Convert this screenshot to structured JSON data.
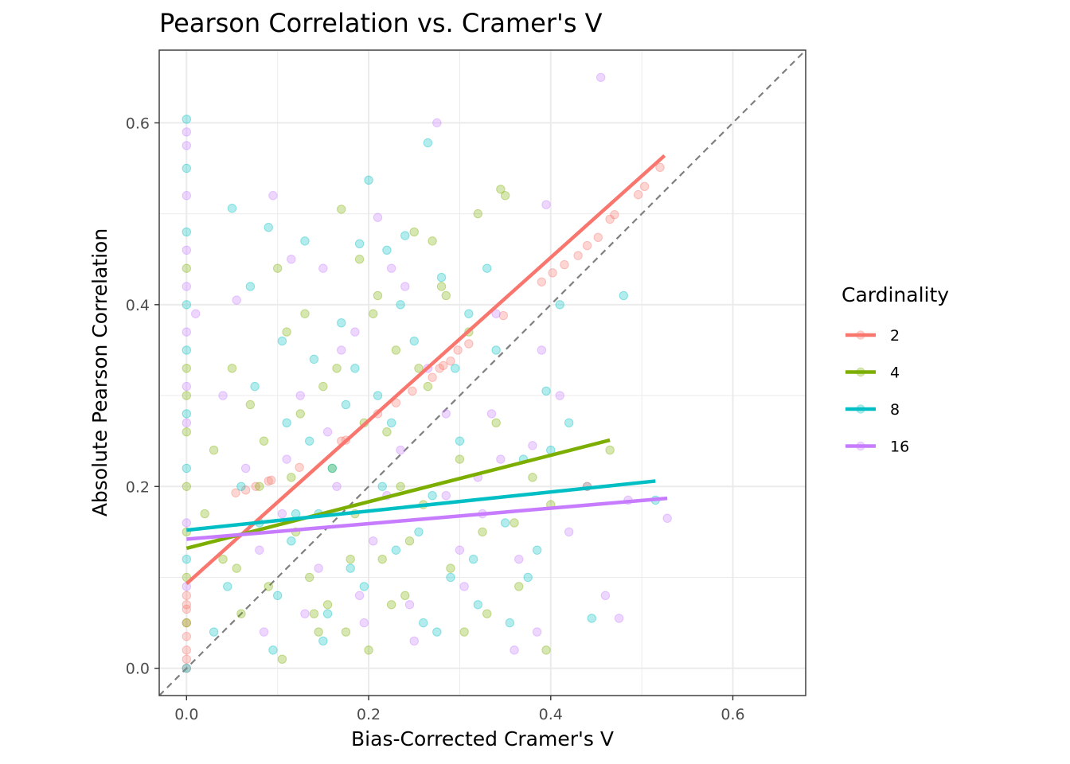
{
  "chart_data": {
    "type": "scatter",
    "title": "Pearson Correlation vs. Cramer's V",
    "xlabel": "Bias-Corrected Cramer's V",
    "ylabel": "Absolute Pearson Correlation",
    "xlim": [
      -0.03,
      0.68
    ],
    "ylim": [
      -0.03,
      0.68
    ],
    "x_ticks": [
      0.0,
      0.2,
      0.4,
      0.6
    ],
    "y_ticks": [
      0.0,
      0.2,
      0.4,
      0.6
    ],
    "x_tick_labels": [
      "0.0",
      "0.2",
      "0.4",
      "0.6"
    ],
    "y_tick_labels": [
      "0.0",
      "0.2",
      "0.4",
      "0.6"
    ],
    "grid": true,
    "reference_line": {
      "type": "identity",
      "style": "dashed",
      "color": "#7f7f7f"
    },
    "legend": {
      "title": "Cardinality",
      "position": "right"
    },
    "point_alpha": 0.3,
    "series": [
      {
        "name": "2",
        "color": "#F8766D",
        "fit": {
          "x": [
            0.0,
            0.525
          ],
          "y": [
            0.093,
            0.564
          ]
        },
        "points": [
          [
            0.0,
            0.0
          ],
          [
            0.0,
            0.01
          ],
          [
            0.0,
            0.02
          ],
          [
            0.0,
            0.035
          ],
          [
            0.0,
            0.05
          ],
          [
            0.0,
            0.065
          ],
          [
            0.0,
            0.07
          ],
          [
            0.0,
            0.08
          ],
          [
            0.054,
            0.193
          ],
          [
            0.065,
            0.196
          ],
          [
            0.076,
            0.2
          ],
          [
            0.09,
            0.206
          ],
          [
            0.093,
            0.207
          ],
          [
            0.124,
            0.221
          ],
          [
            0.17,
            0.25
          ],
          [
            0.175,
            0.251
          ],
          [
            0.21,
            0.28
          ],
          [
            0.23,
            0.292
          ],
          [
            0.248,
            0.305
          ],
          [
            0.27,
            0.32
          ],
          [
            0.278,
            0.33
          ],
          [
            0.282,
            0.333
          ],
          [
            0.29,
            0.338
          ],
          [
            0.298,
            0.35
          ],
          [
            0.31,
            0.357
          ],
          [
            0.348,
            0.388
          ],
          [
            0.39,
            0.425
          ],
          [
            0.402,
            0.435
          ],
          [
            0.415,
            0.444
          ],
          [
            0.43,
            0.454
          ],
          [
            0.44,
            0.465
          ],
          [
            0.452,
            0.474
          ],
          [
            0.465,
            0.494
          ],
          [
            0.47,
            0.499
          ],
          [
            0.496,
            0.521
          ],
          [
            0.503,
            0.53
          ],
          [
            0.52,
            0.551
          ]
        ]
      },
      {
        "name": "4",
        "color": "#7CAE00",
        "fit": {
          "x": [
            0.0,
            0.465
          ],
          "y": [
            0.132,
            0.251
          ]
        },
        "points": [
          [
            0.0,
            0.44
          ],
          [
            0.0,
            0.33
          ],
          [
            0.0,
            0.3
          ],
          [
            0.0,
            0.26
          ],
          [
            0.0,
            0.2
          ],
          [
            0.0,
            0.15
          ],
          [
            0.0,
            0.1
          ],
          [
            0.0,
            0.05
          ],
          [
            0.02,
            0.17
          ],
          [
            0.03,
            0.24
          ],
          [
            0.04,
            0.12
          ],
          [
            0.05,
            0.33
          ],
          [
            0.06,
            0.06
          ],
          [
            0.07,
            0.29
          ],
          [
            0.08,
            0.2
          ],
          [
            0.09,
            0.09
          ],
          [
            0.1,
            0.44
          ],
          [
            0.11,
            0.37
          ],
          [
            0.12,
            0.15
          ],
          [
            0.13,
            0.39
          ],
          [
            0.14,
            0.06
          ],
          [
            0.15,
            0.31
          ],
          [
            0.16,
            0.22
          ],
          [
            0.17,
            0.505
          ],
          [
            0.18,
            0.12
          ],
          [
            0.19,
            0.45
          ],
          [
            0.2,
            0.02
          ],
          [
            0.21,
            0.41
          ],
          [
            0.22,
            0.26
          ],
          [
            0.23,
            0.35
          ],
          [
            0.24,
            0.08
          ],
          [
            0.25,
            0.48
          ],
          [
            0.26,
            0.18
          ],
          [
            0.27,
            0.47
          ],
          [
            0.28,
            0.42
          ],
          [
            0.29,
            0.11
          ],
          [
            0.3,
            0.23
          ],
          [
            0.31,
            0.37
          ],
          [
            0.32,
            0.5
          ],
          [
            0.33,
            0.06
          ],
          [
            0.34,
            0.27
          ],
          [
            0.345,
            0.527
          ],
          [
            0.35,
            0.52
          ],
          [
            0.36,
            0.16
          ],
          [
            0.38,
            0.21
          ],
          [
            0.4,
            0.18
          ],
          [
            0.44,
            0.2
          ],
          [
            0.465,
            0.24
          ],
          [
            0.055,
            0.11
          ],
          [
            0.085,
            0.25
          ],
          [
            0.105,
            0.01
          ],
          [
            0.125,
            0.28
          ],
          [
            0.145,
            0.04
          ],
          [
            0.165,
            0.33
          ],
          [
            0.185,
            0.17
          ],
          [
            0.205,
            0.39
          ],
          [
            0.225,
            0.07
          ],
          [
            0.245,
            0.14
          ],
          [
            0.265,
            0.31
          ],
          [
            0.285,
            0.41
          ],
          [
            0.305,
            0.04
          ],
          [
            0.325,
            0.15
          ],
          [
            0.365,
            0.09
          ],
          [
            0.395,
            0.02
          ],
          [
            0.115,
            0.21
          ],
          [
            0.135,
            0.1
          ],
          [
            0.155,
            0.07
          ],
          [
            0.175,
            0.04
          ],
          [
            0.195,
            0.27
          ],
          [
            0.215,
            0.12
          ],
          [
            0.235,
            0.2
          ],
          [
            0.255,
            0.33
          ]
        ]
      },
      {
        "name": "8",
        "color": "#00BFC4",
        "fit": {
          "x": [
            0.0,
            0.515
          ],
          "y": [
            0.152,
            0.206
          ]
        },
        "points": [
          [
            0.0,
            0.604
          ],
          [
            0.0,
            0.55
          ],
          [
            0.0,
            0.48
          ],
          [
            0.0,
            0.4
          ],
          [
            0.0,
            0.35
          ],
          [
            0.0,
            0.28
          ],
          [
            0.0,
            0.22
          ],
          [
            0.0,
            0.12
          ],
          [
            0.0,
            0.0
          ],
          [
            0.03,
            0.04
          ],
          [
            0.05,
            0.506
          ],
          [
            0.06,
            0.2
          ],
          [
            0.07,
            0.42
          ],
          [
            0.08,
            0.16
          ],
          [
            0.09,
            0.485
          ],
          [
            0.1,
            0.08
          ],
          [
            0.11,
            0.27
          ],
          [
            0.12,
            0.17
          ],
          [
            0.13,
            0.47
          ],
          [
            0.14,
            0.34
          ],
          [
            0.15,
            0.03
          ],
          [
            0.16,
            0.22
          ],
          [
            0.17,
            0.38
          ],
          [
            0.18,
            0.11
          ],
          [
            0.19,
            0.467
          ],
          [
            0.2,
            0.537
          ],
          [
            0.21,
            0.3
          ],
          [
            0.22,
            0.46
          ],
          [
            0.23,
            0.13
          ],
          [
            0.24,
            0.476
          ],
          [
            0.25,
            0.36
          ],
          [
            0.26,
            0.05
          ],
          [
            0.265,
            0.578
          ],
          [
            0.27,
            0.19
          ],
          [
            0.28,
            0.43
          ],
          [
            0.29,
            0.1
          ],
          [
            0.3,
            0.25
          ],
          [
            0.31,
            0.39
          ],
          [
            0.32,
            0.07
          ],
          [
            0.33,
            0.44
          ],
          [
            0.34,
            0.35
          ],
          [
            0.35,
            0.16
          ],
          [
            0.37,
            0.23
          ],
          [
            0.385,
            0.13
          ],
          [
            0.395,
            0.305
          ],
          [
            0.4,
            0.24
          ],
          [
            0.41,
            0.4
          ],
          [
            0.42,
            0.27
          ],
          [
            0.445,
            0.055
          ],
          [
            0.48,
            0.41
          ],
          [
            0.515,
            0.185
          ],
          [
            0.045,
            0.09
          ],
          [
            0.075,
            0.31
          ],
          [
            0.095,
            0.02
          ],
          [
            0.115,
            0.14
          ],
          [
            0.135,
            0.25
          ],
          [
            0.155,
            0.06
          ],
          [
            0.175,
            0.29
          ],
          [
            0.195,
            0.09
          ],
          [
            0.215,
            0.2
          ],
          [
            0.235,
            0.4
          ],
          [
            0.255,
            0.15
          ],
          [
            0.275,
            0.04
          ],
          [
            0.295,
            0.33
          ],
          [
            0.315,
            0.12
          ],
          [
            0.355,
            0.05
          ],
          [
            0.375,
            0.1
          ],
          [
            0.105,
            0.36
          ],
          [
            0.145,
            0.17
          ],
          [
            0.185,
            0.33
          ],
          [
            0.225,
            0.27
          ]
        ]
      },
      {
        "name": "16",
        "color": "#C77CFF",
        "fit": {
          "x": [
            0.0,
            0.528
          ],
          "y": [
            0.142,
            0.187
          ]
        },
        "points": [
          [
            0.0,
            0.59
          ],
          [
            0.0,
            0.575
          ],
          [
            0.0,
            0.52
          ],
          [
            0.0,
            0.46
          ],
          [
            0.0,
            0.42
          ],
          [
            0.0,
            0.37
          ],
          [
            0.0,
            0.31
          ],
          [
            0.0,
            0.27
          ],
          [
            0.0,
            0.16
          ],
          [
            0.0,
            0.09
          ],
          [
            0.01,
            0.39
          ],
          [
            0.04,
            0.3
          ],
          [
            0.055,
            0.405
          ],
          [
            0.08,
            0.13
          ],
          [
            0.095,
            0.52
          ],
          [
            0.11,
            0.23
          ],
          [
            0.13,
            0.06
          ],
          [
            0.15,
            0.44
          ],
          [
            0.17,
            0.35
          ],
          [
            0.19,
            0.08
          ],
          [
            0.21,
            0.496
          ],
          [
            0.22,
            0.19
          ],
          [
            0.24,
            0.42
          ],
          [
            0.25,
            0.03
          ],
          [
            0.275,
            0.6
          ],
          [
            0.285,
            0.28
          ],
          [
            0.3,
            0.13
          ],
          [
            0.32,
            0.21
          ],
          [
            0.34,
            0.39
          ],
          [
            0.36,
            0.02
          ],
          [
            0.38,
            0.245
          ],
          [
            0.39,
            0.35
          ],
          [
            0.395,
            0.51
          ],
          [
            0.41,
            0.3
          ],
          [
            0.42,
            0.15
          ],
          [
            0.44,
            0.2
          ],
          [
            0.455,
            0.65
          ],
          [
            0.46,
            0.08
          ],
          [
            0.475,
            0.055
          ],
          [
            0.485,
            0.185
          ],
          [
            0.528,
            0.165
          ],
          [
            0.065,
            0.22
          ],
          [
            0.085,
            0.04
          ],
          [
            0.105,
            0.17
          ],
          [
            0.125,
            0.3
          ],
          [
            0.145,
            0.11
          ],
          [
            0.165,
            0.2
          ],
          [
            0.185,
            0.37
          ],
          [
            0.205,
            0.14
          ],
          [
            0.225,
            0.44
          ],
          [
            0.245,
            0.07
          ],
          [
            0.265,
            0.33
          ],
          [
            0.305,
            0.09
          ],
          [
            0.325,
            0.17
          ],
          [
            0.345,
            0.23
          ],
          [
            0.365,
            0.12
          ],
          [
            0.385,
            0.04
          ],
          [
            0.115,
            0.45
          ],
          [
            0.155,
            0.26
          ],
          [
            0.195,
            0.05
          ],
          [
            0.235,
            0.24
          ],
          [
            0.285,
            0.19
          ],
          [
            0.335,
            0.28
          ]
        ]
      }
    ]
  }
}
